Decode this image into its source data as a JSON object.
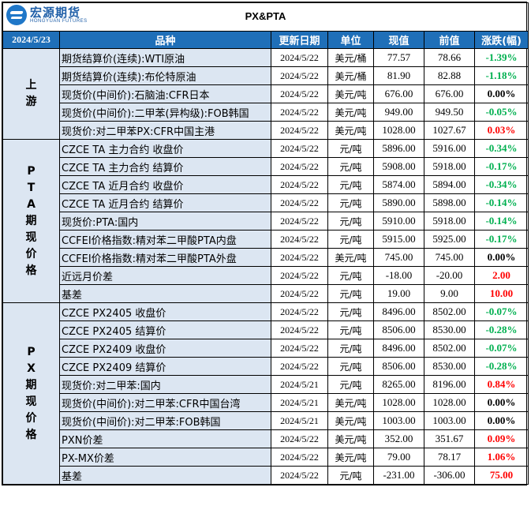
{
  "logo": {
    "cn": "宏源期货",
    "en": "HONGYUAN FUTURES"
  },
  "title": "PX&PTA",
  "header": {
    "date": "2024/5/23",
    "cols": [
      "品种",
      "更新日期",
      "单位",
      "现值",
      "前值",
      "涨跌(幅)"
    ]
  },
  "colors": {
    "header_bg": "#1f6fb8",
    "row_bg": "#dce6f2",
    "up": "#ff0000",
    "down": "#00b050"
  },
  "groups": [
    {
      "label": "上\n游",
      "start": 0,
      "span": 5
    },
    {
      "label": "P\nT\nA\n期\n现\n价\n格",
      "start": 5,
      "span": 9
    },
    {
      "label": "P\nX\n期\n现\n价\n格",
      "start": 14,
      "span": 10
    }
  ],
  "rows": [
    {
      "name": "期货结算价(连续):WTI原油",
      "date": "2024/5/22",
      "unit": "美元/桶",
      "cur": "77.57",
      "prev": "78.66",
      "chg": "-1.39%",
      "dir": "neg"
    },
    {
      "name": "期货结算价(连续):布伦特原油",
      "date": "2024/5/22",
      "unit": "美元/桶",
      "cur": "81.90",
      "prev": "82.88",
      "chg": "-1.18%",
      "dir": "neg"
    },
    {
      "name": "现货价(中间价):石脑油:CFR日本",
      "date": "2024/5/22",
      "unit": "美元/吨",
      "cur": "676.00",
      "prev": "676.00",
      "chg": "0.00%",
      "dir": "zero"
    },
    {
      "name": "现货价(中间价):二甲苯(异构级):FOB韩国",
      "date": "2024/5/22",
      "unit": "美元/吨",
      "cur": "949.00",
      "prev": "949.50",
      "chg": "-0.05%",
      "dir": "neg"
    },
    {
      "name": "现货价:对二甲苯PX:CFR中国主港",
      "date": "2024/5/22",
      "unit": "美元/吨",
      "cur": "1028.00",
      "prev": "1027.67",
      "chg": "0.03%",
      "dir": "pos"
    },
    {
      "name": "CZCE TA 主力合约 收盘价",
      "date": "2024/5/22",
      "unit": "元/吨",
      "cur": "5896.00",
      "prev": "5916.00",
      "chg": "-0.34%",
      "dir": "neg"
    },
    {
      "name": "CZCE TA 主力合约 结算价",
      "date": "2024/5/22",
      "unit": "元/吨",
      "cur": "5908.00",
      "prev": "5918.00",
      "chg": "-0.17%",
      "dir": "neg"
    },
    {
      "name": "CZCE TA 近月合约 收盘价",
      "date": "2024/5/22",
      "unit": "元/吨",
      "cur": "5874.00",
      "prev": "5894.00",
      "chg": "-0.34%",
      "dir": "neg"
    },
    {
      "name": "CZCE TA 近月合约 结算价",
      "date": "2024/5/22",
      "unit": "元/吨",
      "cur": "5890.00",
      "prev": "5898.00",
      "chg": "-0.14%",
      "dir": "neg"
    },
    {
      "name": "现货价:PTA:国内",
      "date": "2024/5/22",
      "unit": "元/吨",
      "cur": "5910.00",
      "prev": "5918.00",
      "chg": "-0.14%",
      "dir": "neg"
    },
    {
      "name": "CCFEI价格指数:精对苯二甲酸PTA内盘",
      "date": "2024/5/22",
      "unit": "元/吨",
      "cur": "5915.00",
      "prev": "5925.00",
      "chg": "-0.17%",
      "dir": "neg"
    },
    {
      "name": "CCFEI价格指数:精对苯二甲酸PTA外盘",
      "date": "2024/5/22",
      "unit": "美元/吨",
      "cur": "745.00",
      "prev": "745.00",
      "chg": "0.00%",
      "dir": "zero"
    },
    {
      "name": "近远月价差",
      "date": "2024/5/22",
      "unit": "元/吨",
      "cur": "-18.00",
      "prev": "-20.00",
      "chg": "2.00",
      "dir": "pos"
    },
    {
      "name": "基差",
      "date": "2024/5/22",
      "unit": "元/吨",
      "cur": "19.00",
      "prev": "9.00",
      "chg": "10.00",
      "dir": "pos"
    },
    {
      "name": "CZCE PX2405 收盘价",
      "date": "2024/5/22",
      "unit": "元/吨",
      "cur": "8496.00",
      "prev": "8502.00",
      "chg": "-0.07%",
      "dir": "neg"
    },
    {
      "name": "CZCE PX2405 结算价",
      "date": "2024/5/22",
      "unit": "元/吨",
      "cur": "8506.00",
      "prev": "8530.00",
      "chg": "-0.28%",
      "dir": "neg"
    },
    {
      "name": "CZCE PX2409 收盘价",
      "date": "2024/5/22",
      "unit": "元/吨",
      "cur": "8496.00",
      "prev": "8502.00",
      "chg": "-0.07%",
      "dir": "neg"
    },
    {
      "name": "CZCE PX2409 结算价",
      "date": "2024/5/22",
      "unit": "元/吨",
      "cur": "8506.00",
      "prev": "8530.00",
      "chg": "-0.28%",
      "dir": "neg"
    },
    {
      "name": "现货价:对二甲苯:国内",
      "date": "2024/5/21",
      "unit": "元/吨",
      "cur": "8265.00",
      "prev": "8196.00",
      "chg": "0.84%",
      "dir": "pos"
    },
    {
      "name": "现货价(中间价):对二甲苯:CFR中国台湾",
      "date": "2024/5/21",
      "unit": "美元/吨",
      "cur": "1028.00",
      "prev": "1028.00",
      "chg": "0.00%",
      "dir": "zero"
    },
    {
      "name": "现货价(中间价):对二甲苯:FOB韩国",
      "date": "2024/5/21",
      "unit": "美元/吨",
      "cur": "1003.00",
      "prev": "1003.00",
      "chg": "0.00%",
      "dir": "zero"
    },
    {
      "name": "PXN价差",
      "date": "2024/5/22",
      "unit": "美元/吨",
      "cur": "352.00",
      "prev": "351.67",
      "chg": "0.09%",
      "dir": "pos"
    },
    {
      "name": "PX-MX价差",
      "date": "2024/5/22",
      "unit": "美元/吨",
      "cur": "79.00",
      "prev": "78.17",
      "chg": "1.06%",
      "dir": "pos"
    },
    {
      "name": "基差",
      "date": "2024/5/22",
      "unit": "元/吨",
      "cur": "-231.00",
      "prev": "-306.00",
      "chg": "75.00",
      "dir": "pos"
    }
  ]
}
